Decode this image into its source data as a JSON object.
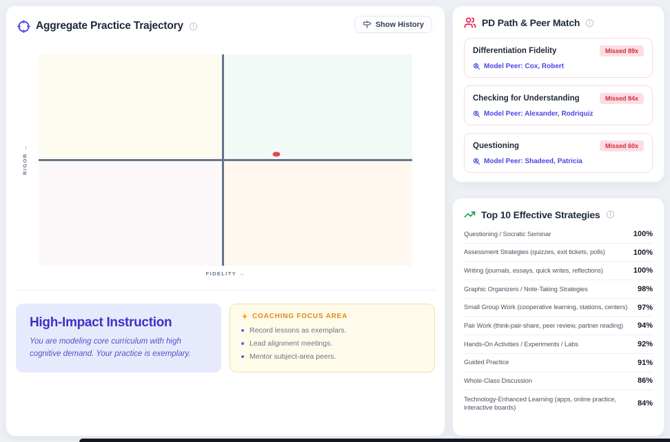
{
  "trajectory_card": {
    "title": "Aggregate Practice Trajectory",
    "show_history_label": "Show History",
    "xlabel": "FIDELITY →",
    "ylabel": "RIGOR →",
    "summary": {
      "title": "High-Impact Instruction",
      "description": "You are modeling core curriculum with high cognitive demand. Your practice is exemplary."
    },
    "coaching": {
      "header": "Coaching Focus Area",
      "items": [
        "Record lessons as exemplars.",
        "Lead alignment meetings.",
        "Mentor subject-area peers."
      ]
    }
  },
  "chart_data": {
    "type": "scatter",
    "title": "Aggregate Practice Trajectory",
    "xlabel": "FIDELITY →",
    "ylabel": "RIGOR →",
    "xlim": [
      0,
      1
    ],
    "ylim": [
      0,
      1
    ],
    "grid": false,
    "crosshair": {
      "x": 0.493,
      "y": 0.5
    },
    "points": [
      {
        "name": "aggregate-practice-position",
        "x": 0.637,
        "y": 0.528
      }
    ],
    "point_color": "#ef4444",
    "axis_color": "#64748b",
    "quadrant_colors": {
      "top_left": "#fdfaf0",
      "top_right": "#f1faf6",
      "bottom_left": "#fcf7f9",
      "bottom_right": "#fef8f0"
    }
  },
  "pd_card": {
    "title": "PD Path & Peer Match",
    "items": [
      {
        "skill": "Differentiation Fidelity",
        "badge": "Missed 89x",
        "peer": "Model Peer: Cox, Robert"
      },
      {
        "skill": "Checking for Understanding",
        "badge": "Missed 84x",
        "peer": "Model Peer: Alexander, Rodriquiz"
      },
      {
        "skill": "Questioning",
        "badge": "Missed 60x",
        "peer": "Model Peer: Shadeed, Patricia"
      }
    ]
  },
  "strategies_card": {
    "title": "Top 10 Effective Strategies",
    "items": [
      {
        "label": "Questioning / Socratic Seminar",
        "value": "100%"
      },
      {
        "label": "Assessment Strategies (quizzes, exit tickets, polls)",
        "value": "100%"
      },
      {
        "label": "Writing (journals, essays, quick writes, reflections)",
        "value": "100%"
      },
      {
        "label": "Graphic Organizers / Note-Taking Strategies",
        "value": "98%"
      },
      {
        "label": "Small Group Work (cooperative learning, stations, centers)",
        "value": "97%"
      },
      {
        "label": "Pair Work (think-pair-share, peer review, partner reading)",
        "value": "94%"
      },
      {
        "label": "Hands-On Activities / Experiments / Labs",
        "value": "92%"
      },
      {
        "label": "Guided Practice",
        "value": "91%"
      },
      {
        "label": "Whole-Class Discussion",
        "value": "86%"
      },
      {
        "label": "Technology-Enhanced Learning (apps, online practice, interactive boards)",
        "value": "84%"
      }
    ]
  },
  "colors": {
    "accent_indigo": "#4f46e5",
    "accent_red": "#e11d48",
    "accent_green": "#16a34a",
    "accent_amber": "#f59e0b"
  }
}
